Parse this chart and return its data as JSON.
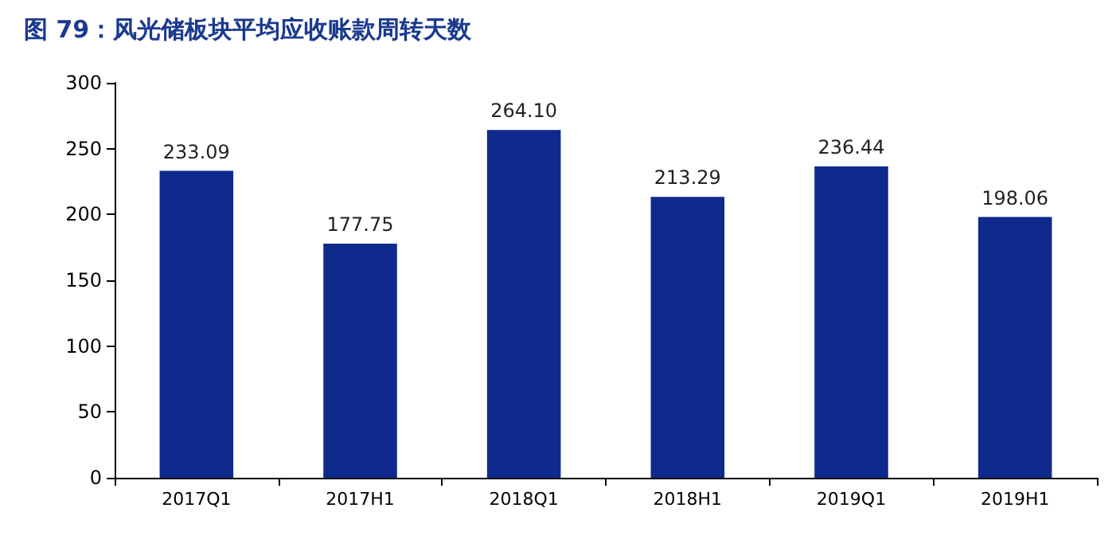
{
  "chart_data": {
    "type": "bar",
    "title": "图 79：风光储板块平均应收账款周转天数",
    "categories": [
      "2017Q1",
      "2017H1",
      "2018Q1",
      "2018H1",
      "2019Q1",
      "2019H1"
    ],
    "values": [
      233.09,
      177.75,
      264.1,
      213.29,
      236.44,
      198.06
    ],
    "value_labels": [
      "233.09",
      "177.75",
      "264.10",
      "213.29",
      "236.44",
      "198.06"
    ],
    "color": "#0d2a8c",
    "ylim": [
      0,
      300
    ],
    "yticks": [
      0,
      50,
      100,
      150,
      200,
      250,
      300
    ],
    "grid": false
  }
}
